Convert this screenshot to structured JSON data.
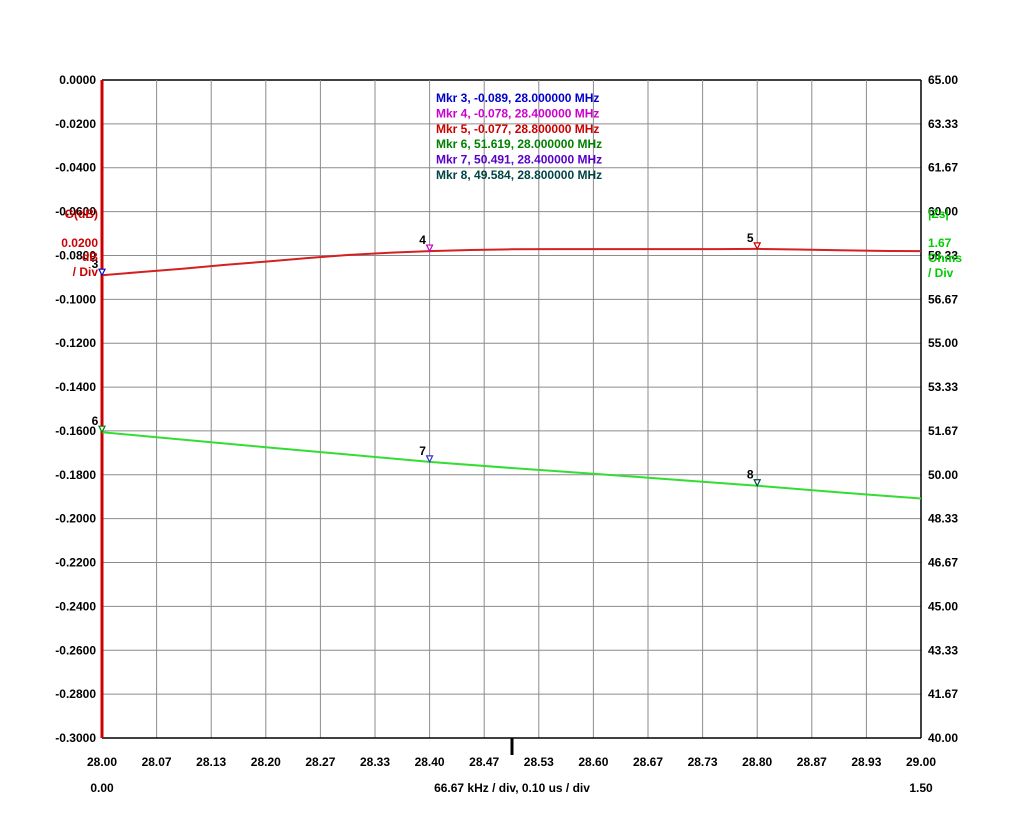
{
  "chart_data": {
    "type": "line",
    "x_ticks": [
      "28.00",
      "28.07",
      "28.13",
      "28.20",
      "28.27",
      "28.33",
      "28.40",
      "28.47",
      "28.53",
      "28.60",
      "28.67",
      "28.73",
      "28.80",
      "28.87",
      "28.93",
      "29.00"
    ],
    "xlim": [
      28.0,
      29.0
    ],
    "time_axis": {
      "start": "0.00",
      "end": "1.50"
    },
    "x_scale_label": "66.67 kHz / div, 0.10 us / div",
    "left_axis": {
      "ylim": [
        -0.3,
        0.0
      ],
      "ticks": [
        "0.0000",
        "-0.0200",
        "-0.0400",
        "-0.0600",
        "-0.0800",
        "-0.1000",
        "-0.1200",
        "-0.1400",
        "-0.1600",
        "-0.1800",
        "-0.2000",
        "-0.2200",
        "-0.2400",
        "-0.2600",
        "-0.2800",
        "-0.3000"
      ],
      "label": "G(dB)",
      "scale_value": "0.0200",
      "scale_unit": "dB",
      "scale_per_div": "/ Div",
      "color": "#cc0000"
    },
    "right_axis": {
      "ylim": [
        40.0,
        65.0
      ],
      "ticks": [
        "65.00",
        "63.33",
        "61.67",
        "60.00",
        "58.33",
        "56.67",
        "55.00",
        "53.33",
        "51.67",
        "50.00",
        "48.33",
        "46.67",
        "45.00",
        "43.33",
        "41.67",
        "40.00"
      ],
      "label": "|Zs|",
      "scale_value": "1.67",
      "scale_unit": "Ohms",
      "scale_per_div": "/ Div",
      "color": "#00cc00"
    },
    "series": [
      {
        "axis": "left",
        "color": "#d42020",
        "x": [
          28.0,
          28.05,
          28.1,
          28.15,
          28.2,
          28.25,
          28.3,
          28.35,
          28.4,
          28.45,
          28.5,
          28.55,
          28.6,
          28.65,
          28.7,
          28.75,
          28.8,
          28.85,
          28.9,
          28.95,
          29.0
        ],
        "values": [
          -0.089,
          -0.0875,
          -0.086,
          -0.0843,
          -0.0828,
          -0.0812,
          -0.0798,
          -0.0788,
          -0.078,
          -0.0775,
          -0.0772,
          -0.0771,
          -0.0771,
          -0.0771,
          -0.0771,
          -0.0771,
          -0.077,
          -0.0773,
          -0.0776,
          -0.0779,
          -0.078
        ]
      },
      {
        "axis": "right",
        "color": "#33dd33",
        "x": [
          28.0,
          28.1,
          28.2,
          28.3,
          28.4,
          28.5,
          28.6,
          28.7,
          28.8,
          28.9,
          29.0
        ],
        "values": [
          51.619,
          51.33,
          51.05,
          50.77,
          50.491,
          50.26,
          50.04,
          49.81,
          49.584,
          49.33,
          49.1
        ]
      }
    ],
    "markers": [
      {
        "id": "3",
        "axis": "left",
        "x": 28.0,
        "y": -0.089,
        "color": "#0000cc"
      },
      {
        "id": "4",
        "axis": "left",
        "x": 28.4,
        "y": -0.078,
        "color": "#cc00cc"
      },
      {
        "id": "5",
        "axis": "left",
        "x": 28.8,
        "y": -0.077,
        "color": "#cc0000"
      },
      {
        "id": "6",
        "axis": "right",
        "x": 28.0,
        "y": 51.619,
        "color": "#008000"
      },
      {
        "id": "7",
        "axis": "right",
        "x": 28.4,
        "y": 50.491,
        "color": "#3333cc"
      },
      {
        "id": "8",
        "axis": "right",
        "x": 28.8,
        "y": 49.584,
        "color": "#004444"
      }
    ],
    "marker_readouts": [
      {
        "text": "Mkr 3, -0.089, 28.000000 MHz",
        "color": "#0000cc"
      },
      {
        "text": "Mkr 4, -0.078, 28.400000 MHz",
        "color": "#cc00cc"
      },
      {
        "text": "Mkr 5, -0.077, 28.800000 MHz",
        "color": "#cc0000"
      },
      {
        "text": "Mkr 6, 51.619, 28.000000 MHz",
        "color": "#008000"
      },
      {
        "text": "Mkr 7, 50.491, 28.400000 MHz",
        "color": "#5500cc"
      },
      {
        "text": "Mkr 8, 49.584, 28.800000 MHz",
        "color": "#004444"
      }
    ],
    "grid": true
  }
}
